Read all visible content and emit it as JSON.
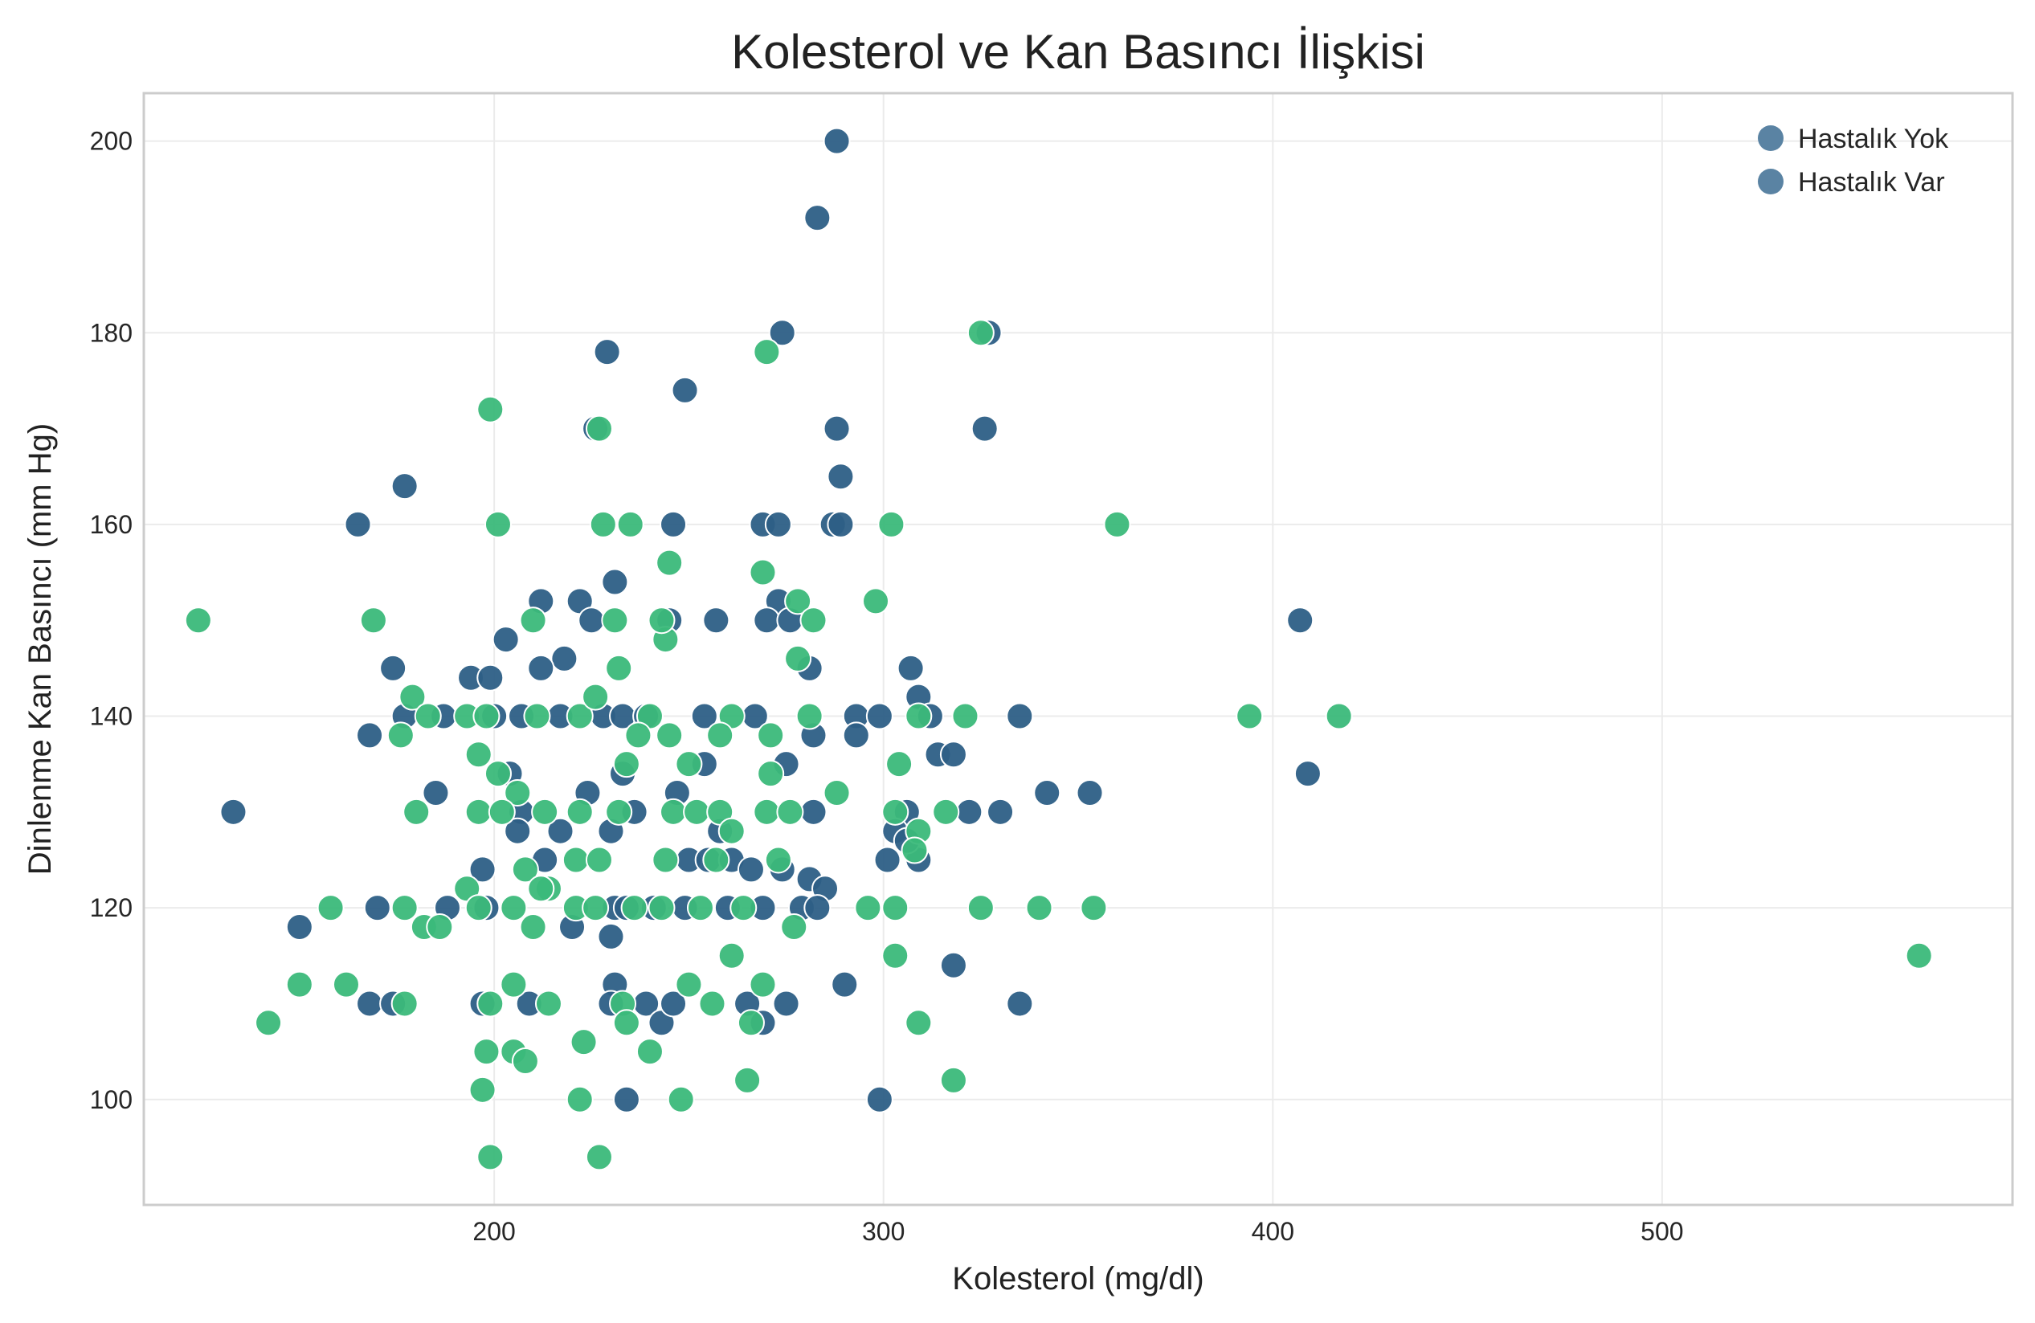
{
  "chart_data": {
    "type": "scatter",
    "title": "Kolesterol ve Kan Basıncı İlişkisi",
    "xlabel": "Kolesterol (mg/dl)",
    "ylabel": "Dinlenme Kan Basıncı (mm Hg)",
    "xlim": [
      110,
      590
    ],
    "ylim": [
      89,
      205
    ],
    "xticks": [
      200,
      300,
      400,
      500
    ],
    "yticks": [
      100,
      120,
      140,
      160,
      180,
      200
    ],
    "grid": true,
    "legend_position": "top-right",
    "legend": [
      {
        "label": "Hastalık Yok",
        "color": "#5a83a3"
      },
      {
        "label": "Hastalık Var",
        "color": "#5a83a3"
      }
    ],
    "series": [
      {
        "color": "#2d5f86",
        "points": [
          [
            288,
            200
          ],
          [
            283,
            192
          ],
          [
            274,
            180
          ],
          [
            327,
            180
          ],
          [
            229,
            178
          ],
          [
            249,
            174
          ],
          [
            226,
            170
          ],
          [
            288,
            170
          ],
          [
            326,
            170
          ],
          [
            289,
            165
          ],
          [
            177,
            164
          ],
          [
            165,
            160
          ],
          [
            246,
            160
          ],
          [
            269,
            160
          ],
          [
            273,
            160
          ],
          [
            287,
            160
          ],
          [
            289,
            160
          ],
          [
            212,
            152
          ],
          [
            222,
            152
          ],
          [
            273,
            152
          ],
          [
            231,
            154
          ],
          [
            203,
            148
          ],
          [
            407,
            150
          ],
          [
            257,
            150
          ],
          [
            270,
            150
          ],
          [
            276,
            150
          ],
          [
            225,
            150
          ],
          [
            245,
            150
          ],
          [
            218,
            146
          ],
          [
            212,
            145
          ],
          [
            174,
            145
          ],
          [
            281,
            145
          ],
          [
            307,
            145
          ],
          [
            194,
            144
          ],
          [
            199,
            144
          ],
          [
            309,
            142
          ],
          [
            168,
            138
          ],
          [
            177,
            140
          ],
          [
            187,
            140
          ],
          [
            200,
            140
          ],
          [
            207,
            140
          ],
          [
            217,
            140
          ],
          [
            228,
            140
          ],
          [
            233,
            140
          ],
          [
            239,
            140
          ],
          [
            254,
            140
          ],
          [
            267,
            140
          ],
          [
            293,
            140
          ],
          [
            299,
            140
          ],
          [
            312,
            140
          ],
          [
            335,
            140
          ],
          [
            282,
            138
          ],
          [
            293,
            138
          ],
          [
            314,
            136
          ],
          [
            318,
            136
          ],
          [
            204,
            134
          ],
          [
            233,
            134
          ],
          [
            409,
            134
          ],
          [
            185,
            132
          ],
          [
            224,
            132
          ],
          [
            247,
            132
          ],
          [
            254,
            135
          ],
          [
            275,
            135
          ],
          [
            133,
            130
          ],
          [
            207,
            130
          ],
          [
            236,
            130
          ],
          [
            282,
            130
          ],
          [
            306,
            130
          ],
          [
            322,
            130
          ],
          [
            330,
            130
          ],
          [
            342,
            132
          ],
          [
            353,
            132
          ],
          [
            206,
            128
          ],
          [
            213,
            125
          ],
          [
            217,
            128
          ],
          [
            230,
            128
          ],
          [
            250,
            125
          ],
          [
            255,
            125
          ],
          [
            258,
            128
          ],
          [
            261,
            125
          ],
          [
            266,
            124
          ],
          [
            274,
            124
          ],
          [
            301,
            125
          ],
          [
            303,
            128
          ],
          [
            309,
            125
          ],
          [
            306,
            127
          ],
          [
            197,
            124
          ],
          [
            188,
            120
          ],
          [
            198,
            120
          ],
          [
            170,
            120
          ],
          [
            231,
            120
          ],
          [
            234,
            120
          ],
          [
            241,
            120
          ],
          [
            249,
            120
          ],
          [
            260,
            120
          ],
          [
            269,
            120
          ],
          [
            279,
            120
          ],
          [
            281,
            123
          ],
          [
            285,
            122
          ],
          [
            283,
            120
          ],
          [
            220,
            118
          ],
          [
            150,
            118
          ],
          [
            230,
            117
          ],
          [
            168,
            110
          ],
          [
            174,
            110
          ],
          [
            197,
            110
          ],
          [
            209,
            110
          ],
          [
            231,
            112
          ],
          [
            230,
            110
          ],
          [
            239,
            110
          ],
          [
            243,
            108
          ],
          [
            246,
            110
          ],
          [
            265,
            110
          ],
          [
            269,
            108
          ],
          [
            275,
            110
          ],
          [
            290,
            112
          ],
          [
            318,
            114
          ],
          [
            335,
            110
          ],
          [
            234,
            100
          ],
          [
            299,
            100
          ]
        ]
      },
      {
        "color": "#3bb97a",
        "points": [
          [
            124,
            150
          ],
          [
            169,
            150
          ],
          [
            199,
            172
          ],
          [
            227,
            170
          ],
          [
            325,
            180
          ],
          [
            270,
            178
          ],
          [
            201,
            160
          ],
          [
            228,
            160
          ],
          [
            235,
            160
          ],
          [
            302,
            160
          ],
          [
            360,
            160
          ],
          [
            245,
            156
          ],
          [
            269,
            155
          ],
          [
            278,
            152
          ],
          [
            298,
            152
          ],
          [
            210,
            150
          ],
          [
            231,
            150
          ],
          [
            244,
            148
          ],
          [
            243,
            150
          ],
          [
            282,
            150
          ],
          [
            278,
            146
          ],
          [
            176,
            138
          ],
          [
            179,
            142
          ],
          [
            183,
            140
          ],
          [
            193,
            140
          ],
          [
            198,
            140
          ],
          [
            211,
            140
          ],
          [
            222,
            140
          ],
          [
            226,
            142
          ],
          [
            232,
            145
          ],
          [
            240,
            140
          ],
          [
            250,
            135
          ],
          [
            261,
            140
          ],
          [
            271,
            138
          ],
          [
            281,
            140
          ],
          [
            309,
            140
          ],
          [
            321,
            140
          ],
          [
            394,
            140
          ],
          [
            417,
            140
          ],
          [
            196,
            136
          ],
          [
            201,
            134
          ],
          [
            206,
            132
          ],
          [
            234,
            135
          ],
          [
            237,
            138
          ],
          [
            245,
            138
          ],
          [
            258,
            138
          ],
          [
            271,
            134
          ],
          [
            304,
            135
          ],
          [
            180,
            130
          ],
          [
            196,
            130
          ],
          [
            202,
            130
          ],
          [
            213,
            130
          ],
          [
            222,
            130
          ],
          [
            232,
            130
          ],
          [
            246,
            130
          ],
          [
            252,
            130
          ],
          [
            258,
            130
          ],
          [
            270,
            130
          ],
          [
            276,
            130
          ],
          [
            288,
            132
          ],
          [
            303,
            130
          ],
          [
            316,
            130
          ],
          [
            208,
            124
          ],
          [
            214,
            122
          ],
          [
            221,
            125
          ],
          [
            227,
            125
          ],
          [
            244,
            125
          ],
          [
            257,
            125
          ],
          [
            261,
            128
          ],
          [
            273,
            125
          ],
          [
            309,
            128
          ],
          [
            308,
            126
          ],
          [
            158,
            120
          ],
          [
            177,
            120
          ],
          [
            182,
            118
          ],
          [
            186,
            118
          ],
          [
            193,
            122
          ],
          [
            196,
            120
          ],
          [
            205,
            120
          ],
          [
            210,
            118
          ],
          [
            212,
            122
          ],
          [
            221,
            120
          ],
          [
            226,
            120
          ],
          [
            236,
            120
          ],
          [
            243,
            120
          ],
          [
            253,
            120
          ],
          [
            264,
            120
          ],
          [
            277,
            118
          ],
          [
            296,
            120
          ],
          [
            303,
            120
          ],
          [
            325,
            120
          ],
          [
            340,
            120
          ],
          [
            354,
            120
          ],
          [
            150,
            112
          ],
          [
            162,
            112
          ],
          [
            177,
            110
          ],
          [
            199,
            110
          ],
          [
            205,
            112
          ],
          [
            214,
            110
          ],
          [
            233,
            110
          ],
          [
            250,
            112
          ],
          [
            256,
            110
          ],
          [
            261,
            115
          ],
          [
            269,
            112
          ],
          [
            303,
            115
          ],
          [
            142,
            108
          ],
          [
            198,
            105
          ],
          [
            205,
            105
          ],
          [
            208,
            104
          ],
          [
            223,
            106
          ],
          [
            234,
            108
          ],
          [
            240,
            105
          ],
          [
            266,
            108
          ],
          [
            309,
            108
          ],
          [
            197,
            101
          ],
          [
            222,
            100
          ],
          [
            248,
            100
          ],
          [
            265,
            102
          ],
          [
            318,
            102
          ],
          [
            566,
            115
          ],
          [
            199,
            94
          ],
          [
            227,
            94
          ]
        ]
      }
    ]
  }
}
